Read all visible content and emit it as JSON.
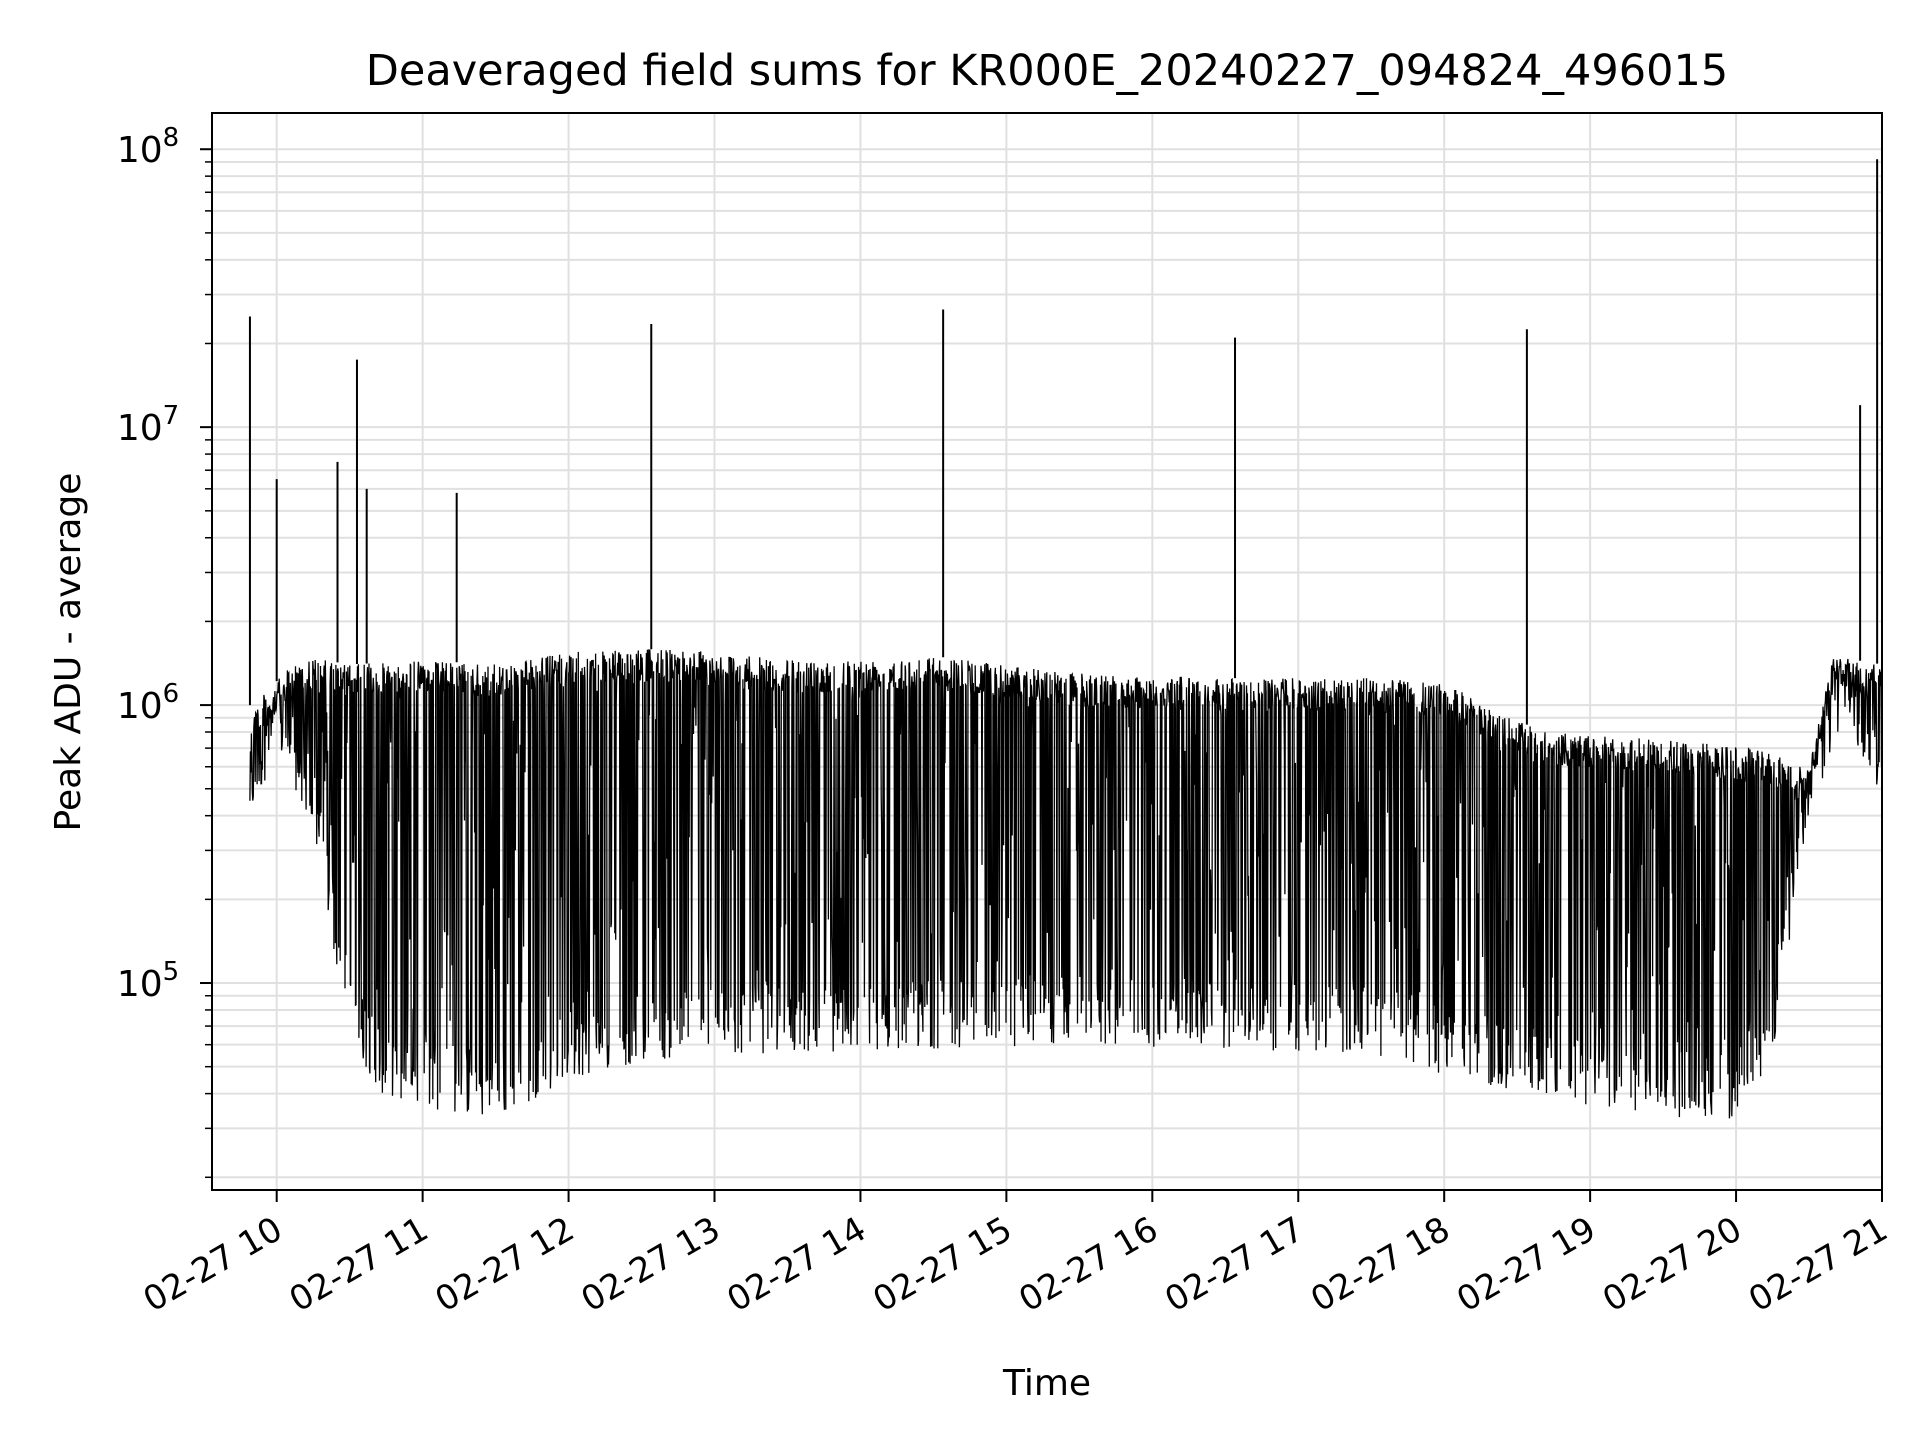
{
  "chart_data": {
    "type": "line",
    "title": "Deaveraged field sums for KR000E_20240227_094824_496015",
    "xlabel": "Time",
    "ylabel": "Peak ADU - average",
    "y_scale": "log",
    "ylim": [
      18000,
      135000000
    ],
    "xlim": [
      "2024-02-27 09:49",
      "2024-02-27 21:00"
    ],
    "grid": true,
    "legend": "none",
    "line_color": "#000000",
    "grid_color": "#e0e0e0",
    "x_ticks": [
      "02-27 10",
      "02-27 11",
      "02-27 12",
      "02-27 13",
      "02-27 14",
      "02-27 15",
      "02-27 16",
      "02-27 17",
      "02-27 18",
      "02-27 19",
      "02-27 20",
      "02-27 21"
    ],
    "y_ticks": [
      {
        "base": "10",
        "exp": "5",
        "value": 100000
      },
      {
        "base": "10",
        "exp": "6",
        "value": 1000000
      },
      {
        "base": "10",
        "exp": "7",
        "value": 10000000
      },
      {
        "base": "10",
        "exp": "8",
        "value": 100000000
      }
    ],
    "upper_envelope": [
      {
        "x": "2024-02-27 09:49",
        "y": 1000000
      },
      {
        "x": "2024-02-27 09:55",
        "y": 1100000
      },
      {
        "x": "2024-02-27 10:10",
        "y": 1500000
      },
      {
        "x": "2024-02-27 10:30",
        "y": 1400000
      },
      {
        "x": "2024-02-27 11:00",
        "y": 1450000
      },
      {
        "x": "2024-02-27 11:30",
        "y": 1400000
      },
      {
        "x": "2024-02-27 12:00",
        "y": 1550000
      },
      {
        "x": "2024-02-27 12:45",
        "y": 1600000
      },
      {
        "x": "2024-02-27 13:30",
        "y": 1450000
      },
      {
        "x": "2024-02-27 14:30",
        "y": 1500000
      },
      {
        "x": "2024-02-27 15:30",
        "y": 1300000
      },
      {
        "x": "2024-02-27 16:30",
        "y": 1250000
      },
      {
        "x": "2024-02-27 17:30",
        "y": 1250000
      },
      {
        "x": "2024-02-27 18:00",
        "y": 1200000
      },
      {
        "x": "2024-02-27 18:40",
        "y": 800000
      },
      {
        "x": "2024-02-27 19:30",
        "y": 750000
      },
      {
        "x": "2024-02-27 20:10",
        "y": 700000
      },
      {
        "x": "2024-02-27 20:30",
        "y": 600000
      },
      {
        "x": "2024-02-27 20:40",
        "y": 1500000
      },
      {
        "x": "2024-02-27 21:00",
        "y": 1400000
      }
    ],
    "lower_envelope": [
      {
        "x": "2024-02-27 09:49",
        "y": 380000
      },
      {
        "x": "2024-02-27 10:00",
        "y": 700000
      },
      {
        "x": "2024-02-27 10:15",
        "y": 350000
      },
      {
        "x": "2024-02-27 10:30",
        "y": 60000
      },
      {
        "x": "2024-02-27 10:45",
        "y": 38000
      },
      {
        "x": "2024-02-27 11:30",
        "y": 32000
      },
      {
        "x": "2024-02-27 12:00",
        "y": 45000
      },
      {
        "x": "2024-02-27 12:30",
        "y": 52000
      },
      {
        "x": "2024-02-27 13:00",
        "y": 55000
      },
      {
        "x": "2024-02-27 14:30",
        "y": 58000
      },
      {
        "x": "2024-02-27 15:30",
        "y": 60000
      },
      {
        "x": "2024-02-27 16:30",
        "y": 58000
      },
      {
        "x": "2024-02-27 17:30",
        "y": 55000
      },
      {
        "x": "2024-02-27 18:30",
        "y": 40000
      },
      {
        "x": "2024-02-27 19:00",
        "y": 35000
      },
      {
        "x": "2024-02-27 19:30",
        "y": 33000
      },
      {
        "x": "2024-02-27 20:00",
        "y": 32000
      },
      {
        "x": "2024-02-27 20:15",
        "y": 55000
      },
      {
        "x": "2024-02-27 20:30",
        "y": 400000
      },
      {
        "x": "2024-02-27 20:45",
        "y": 900000
      },
      {
        "x": "2024-02-27 21:00",
        "y": 450000
      }
    ],
    "spikes": [
      {
        "x": "2024-02-27 09:49",
        "y": 25000000
      },
      {
        "x": "2024-02-27 10:00",
        "y": 6500000
      },
      {
        "x": "2024-02-27 10:25",
        "y": 7500000
      },
      {
        "x": "2024-02-27 10:33",
        "y": 17500000
      },
      {
        "x": "2024-02-27 10:37",
        "y": 6000000
      },
      {
        "x": "2024-02-27 11:14",
        "y": 5800000
      },
      {
        "x": "2024-02-27 12:34",
        "y": 23500000
      },
      {
        "x": "2024-02-27 14:34",
        "y": 26500000
      },
      {
        "x": "2024-02-27 16:34",
        "y": 21000000
      },
      {
        "x": "2024-02-27 18:34",
        "y": 22500000
      },
      {
        "x": "2024-02-27 20:51",
        "y": 12000000
      },
      {
        "x": "2024-02-27 20:58",
        "y": 92000000
      }
    ]
  }
}
